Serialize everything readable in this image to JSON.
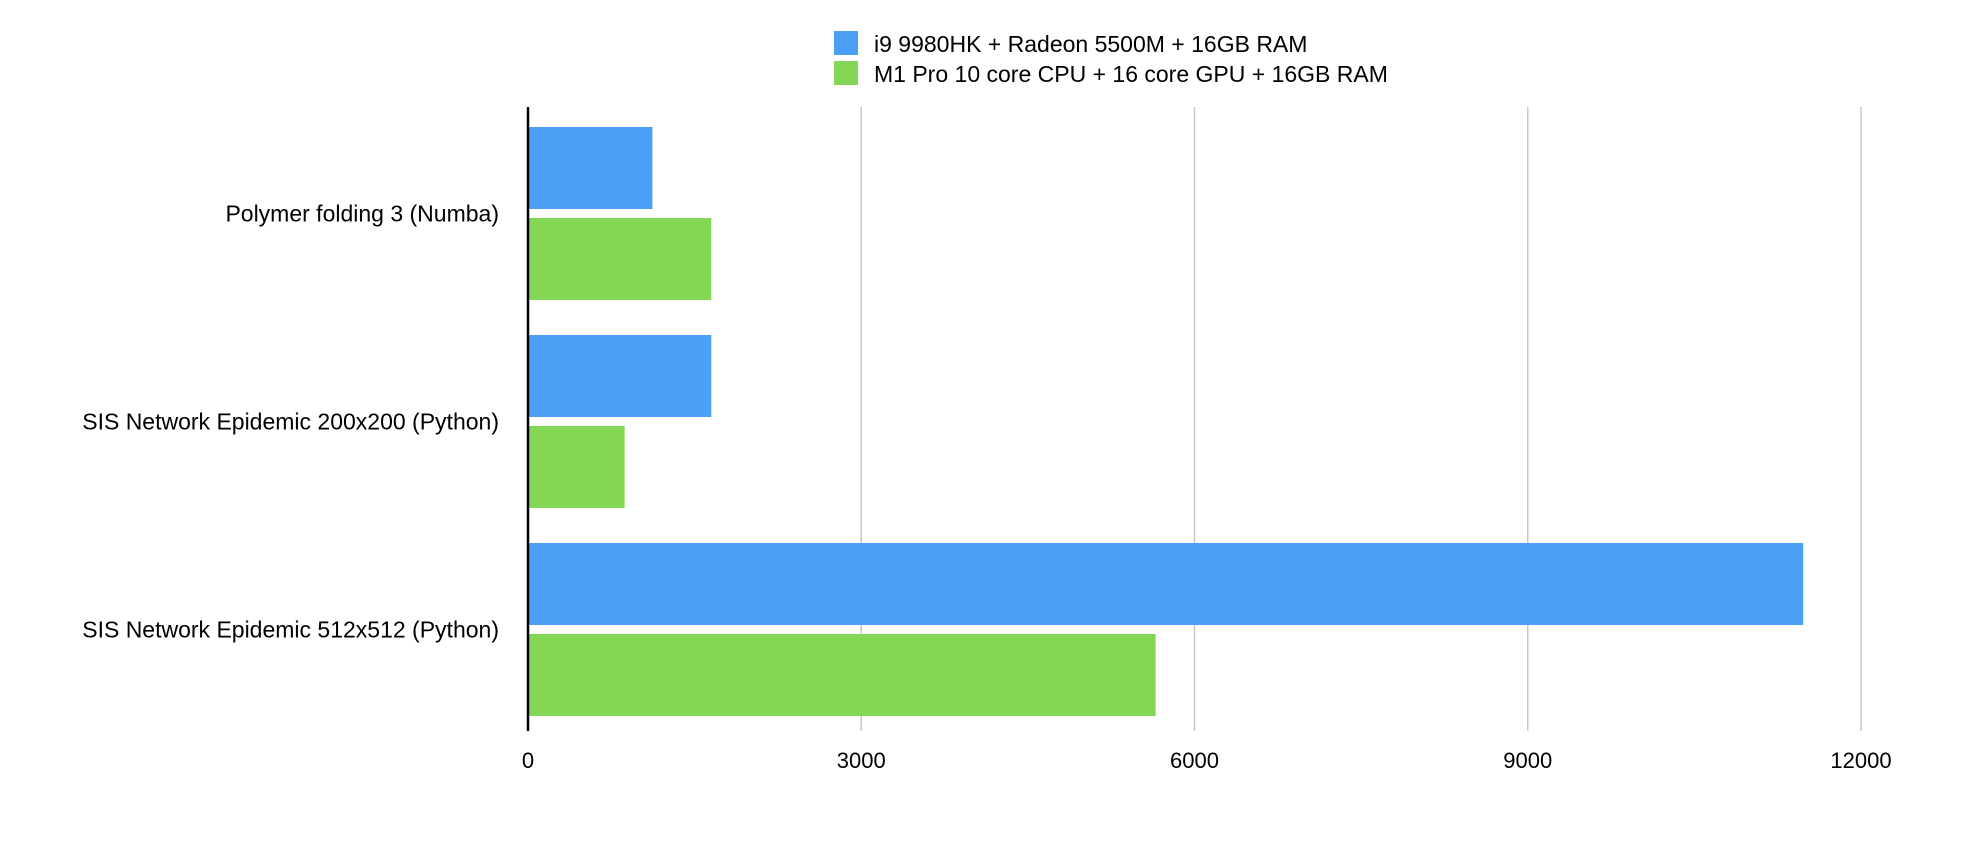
{
  "chart_data": {
    "type": "bar",
    "orientation": "horizontal",
    "title": "",
    "xlabel": "",
    "ylabel": "",
    "categories": [
      "Polymer folding 3 (Numba)",
      "SIS Network Epidemic 200x200 (Python)",
      "SIS Network Epidemic 512x512 (Python)"
    ],
    "series": [
      {
        "name": "i9 9980HK + Radeon 5500M + 16GB RAM",
        "color": "#4aa0f7",
        "values": [
          1120,
          1650,
          11480
        ]
      },
      {
        "name": "M1 Pro 10 core CPU + 16 core GPU + 16GB RAM",
        "color": "#84d755",
        "values": [
          1650,
          870,
          5650
        ]
      }
    ],
    "xlim": [
      0,
      12000
    ],
    "x_ticks": [
      "0",
      "3000",
      "6000",
      "9000",
      "12000"
    ],
    "grid": true,
    "legend_position": "top-center"
  }
}
